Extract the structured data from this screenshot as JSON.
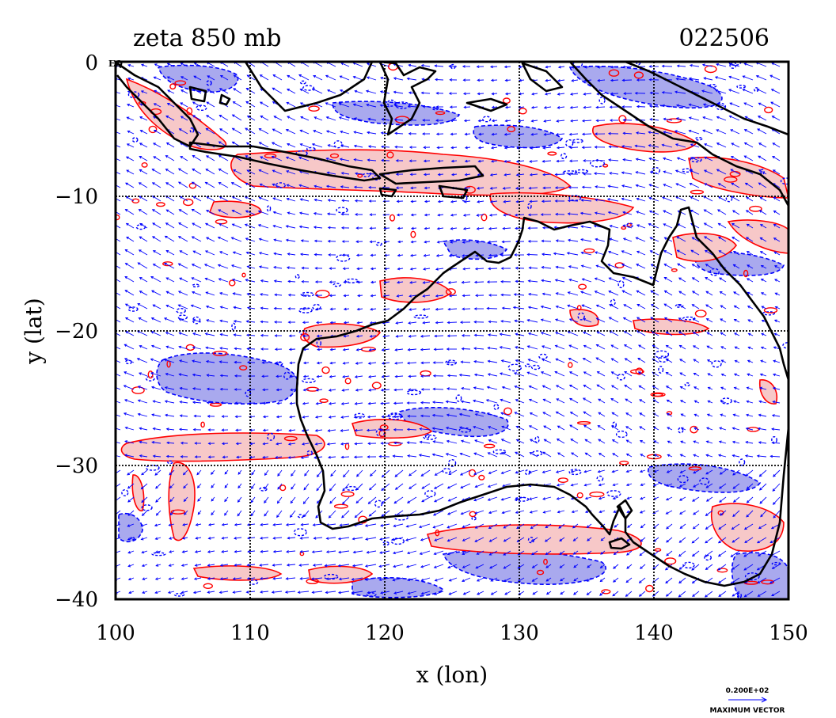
{
  "title_left": "zeta 850 mb",
  "title_right": "022506",
  "xlabel": "x (lon)",
  "ylabel": "y (lat)",
  "x_ticks": [
    "100",
    "110",
    "120",
    "130",
    "140",
    "150"
  ],
  "y_ticks": [
    "0",
    "−10",
    "−20",
    "−30",
    "−40"
  ],
  "eq_label": "EQ",
  "vector_legend": {
    "value": "0.200E+02",
    "label": "MAXIMUM VECTOR"
  },
  "map_extent": {
    "lon": [
      100,
      150
    ],
    "lat": [
      -40,
      0
    ]
  },
  "colors": {
    "positive_contour": "#ff0000",
    "positive_fill": "#f7c8c8",
    "negative_contour": "#0000ff",
    "negative_fill": "#a9a9ee",
    "vectors": "#0000ff",
    "coastline": "#000000"
  }
}
